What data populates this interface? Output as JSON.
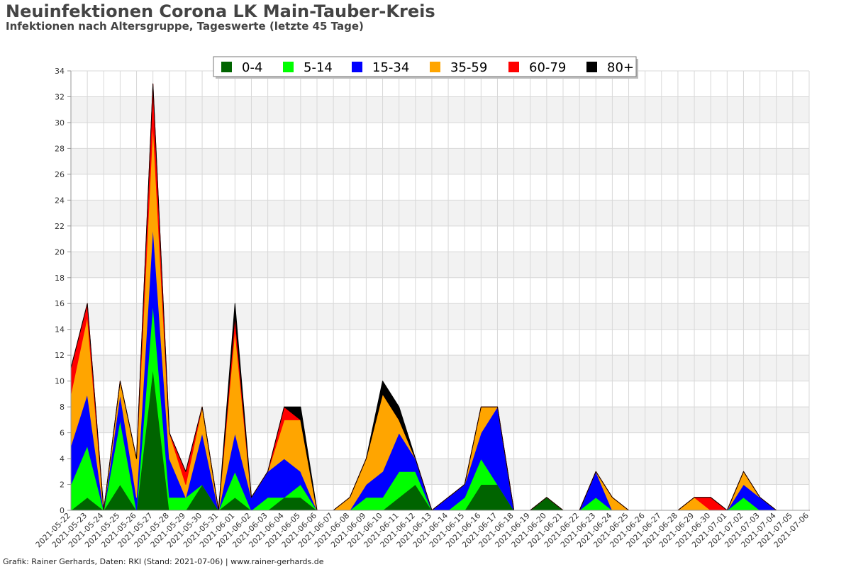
{
  "header": {
    "title": "Neuinfektionen Corona LK Main-Tauber-Kreis",
    "subtitle": "Infektionen nach Altersgruppe, Tageswerte (letzte 45 Tage)"
  },
  "footer": {
    "text": "Grafik: Rainer Gerhards, Daten: RKI (Stand: 2021-07-06) | www.rainer-gerhards.de"
  },
  "chart_data": {
    "type": "area",
    "stacked": true,
    "title": "Neuinfektionen Corona LK Main-Tauber-Kreis",
    "subtitle": "Infektionen nach Altersgruppe, Tageswerte (letzte 45 Tage)",
    "ylim": [
      0,
      34
    ],
    "ytick_step": 2,
    "grid": true,
    "legend_position": "top",
    "x": [
      "2021-05-22",
      "2021-05-23",
      "2021-05-24",
      "2021-05-25",
      "2021-05-26",
      "2021-05-27",
      "2021-05-28",
      "2021-05-29",
      "2021-05-30",
      "2021-05-31",
      "2021-06-01",
      "2021-06-02",
      "2021-06-03",
      "2021-06-04",
      "2021-06-05",
      "2021-06-06",
      "2021-06-07",
      "2021-06-08",
      "2021-06-09",
      "2021-06-10",
      "2021-06-11",
      "2021-06-12",
      "2021-06-13",
      "2021-06-14",
      "2021-06-15",
      "2021-06-16",
      "2021-06-17",
      "2021-06-18",
      "2021-06-19",
      "2021-06-20",
      "2021-06-21",
      "2021-06-22",
      "2021-06-23",
      "2021-06-24",
      "2021-06-25",
      "2021-06-26",
      "2021-06-27",
      "2021-06-28",
      "2021-06-29",
      "2021-06-30",
      "2021-07-01",
      "2021-07-02",
      "2021-07-03",
      "2021-07-04",
      "2021-07-05",
      "2021-07-06"
    ],
    "series": [
      {
        "name": "0-4",
        "color": "#006400",
        "values": [
          0,
          1,
          0,
          2,
          0,
          11,
          0,
          0,
          2,
          0,
          1,
          0,
          0,
          1,
          1,
          0,
          0,
          0,
          0,
          0,
          1,
          2,
          0,
          0,
          0,
          2,
          2,
          0,
          0,
          1,
          0,
          0,
          0,
          0,
          0,
          0,
          0,
          0,
          0,
          0,
          0,
          0,
          0,
          0,
          0,
          0
        ]
      },
      {
        "name": "5-14",
        "color": "#00ff00",
        "values": [
          2,
          4,
          0,
          5,
          0,
          5,
          1,
          1,
          0,
          0,
          2,
          0,
          1,
          0,
          1,
          0,
          0,
          0,
          1,
          1,
          2,
          1,
          0,
          0,
          1,
          2,
          0,
          0,
          0,
          0,
          0,
          0,
          1,
          0,
          0,
          0,
          0,
          0,
          0,
          0,
          0,
          1,
          0,
          0,
          0,
          0
        ]
      },
      {
        "name": "15-34",
        "color": "#0000ff",
        "values": [
          3,
          4,
          0,
          2,
          1,
          6,
          3,
          0,
          4,
          0,
          3,
          1,
          2,
          3,
          1,
          0,
          0,
          0,
          1,
          2,
          3,
          1,
          0,
          1,
          1,
          2,
          6,
          0,
          0,
          0,
          0,
          0,
          2,
          0,
          0,
          0,
          0,
          0,
          0,
          0,
          0,
          1,
          1,
          0,
          0,
          0
        ]
      },
      {
        "name": "35-59",
        "color": "#ffa500",
        "values": [
          4,
          6,
          0,
          1,
          3,
          8,
          2,
          1,
          2,
          0,
          8,
          0,
          0,
          3,
          4,
          0,
          0,
          1,
          2,
          6,
          1,
          0,
          0,
          0,
          0,
          2,
          0,
          0,
          0,
          0,
          0,
          0,
          0,
          1,
          0,
          0,
          0,
          0,
          1,
          0,
          0,
          1,
          0,
          0,
          0,
          0
        ]
      },
      {
        "name": "60-79",
        "color": "#ff0000",
        "values": [
          2,
          1,
          0,
          0,
          0,
          3,
          0,
          1,
          0,
          0,
          1,
          0,
          0,
          1,
          0,
          0,
          0,
          0,
          0,
          0,
          0,
          0,
          0,
          0,
          0,
          0,
          0,
          0,
          0,
          0,
          0,
          0,
          0,
          0,
          0,
          0,
          0,
          0,
          0,
          1,
          0,
          0,
          0,
          0,
          0,
          0
        ]
      },
      {
        "name": "80+",
        "color": "#000000",
        "values": [
          0,
          0,
          0,
          0,
          0,
          0,
          0,
          0,
          0,
          0,
          1,
          0,
          0,
          0,
          1,
          0,
          0,
          0,
          0,
          1,
          1,
          0,
          0,
          0,
          0,
          0,
          0,
          0,
          0,
          0,
          0,
          0,
          0,
          0,
          0,
          0,
          0,
          0,
          0,
          0,
          0,
          0,
          0,
          0,
          0,
          0
        ]
      }
    ]
  }
}
